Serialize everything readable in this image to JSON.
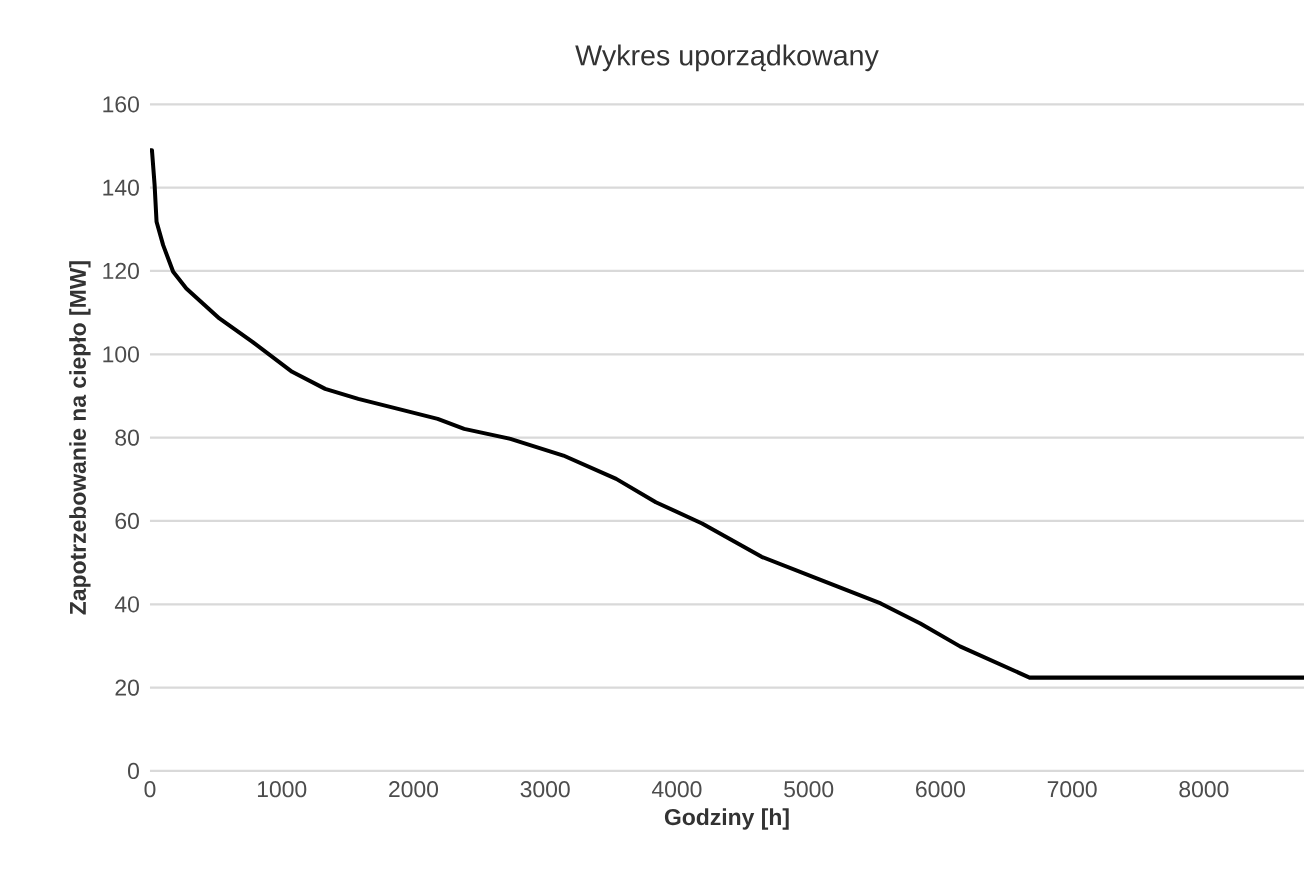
{
  "chart_data": {
    "type": "line",
    "title": "Wykres uporządkowany",
    "xlabel": "Godziny [h]",
    "ylabel": "Zapotrzebowanie na ciepło [MW]",
    "series": [
      {
        "color": "#000000",
        "x": [
          0,
          15,
          35,
          50,
          100,
          176,
          276,
          527,
          778,
          1079,
          1330,
          1581,
          1883,
          2184,
          2385,
          2736,
          3138,
          3539,
          3840,
          4191,
          4643,
          5095,
          5547,
          5848,
          6149,
          6677,
          8760
        ],
        "values": [
          149,
          149,
          140.7,
          131.8,
          126.2,
          119.8,
          115.8,
          108.6,
          103,
          95.8,
          91.7,
          89.3,
          86.9,
          84.5,
          82.1,
          79.7,
          75.7,
          70.1,
          64.5,
          59.4,
          51.4,
          45.8,
          40.2,
          35.4,
          29.9,
          22.4,
          22.4
        ]
      }
    ],
    "xlim": [
      0,
      8760
    ],
    "ylim": [
      0,
      160
    ],
    "xticks": [
      0,
      1000,
      2000,
      3000,
      4000,
      5000,
      6000,
      7000,
      8000
    ],
    "yticks": [
      0,
      20,
      40,
      60,
      80,
      100,
      120,
      140,
      160
    ],
    "grid": "y",
    "marker": "none",
    "line_style": "solid"
  }
}
